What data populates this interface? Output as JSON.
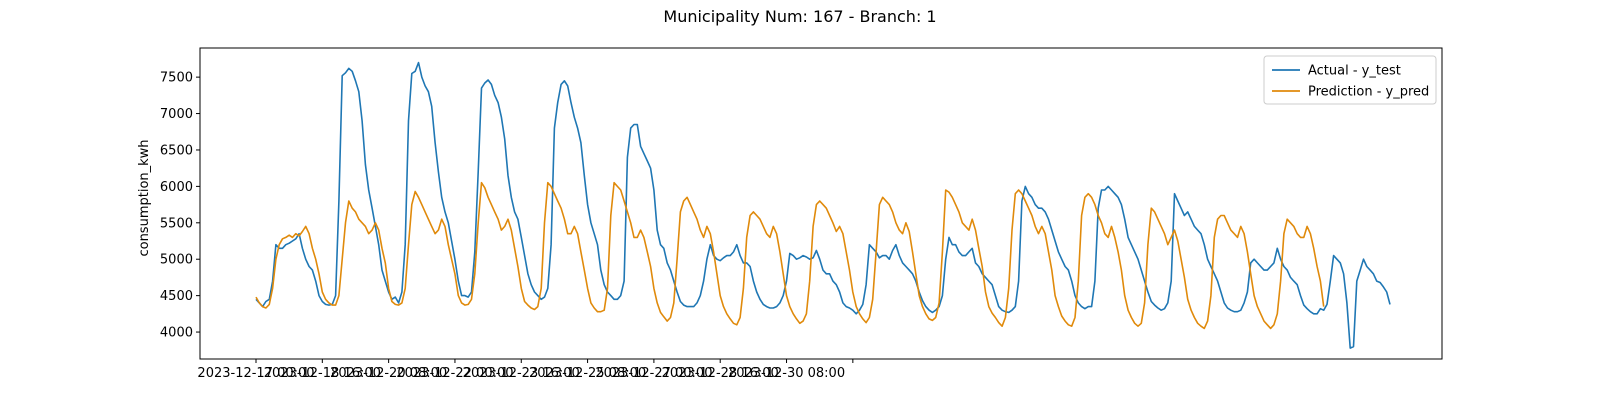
{
  "chart_data": {
    "type": "line",
    "title": "Municipality Num: 167 - Branch: 1",
    "xlabel": "",
    "ylabel": "consumption_kwh",
    "x_start": "2023-12-17 00:00",
    "x_step_hours": 2,
    "x_tick_labels": [
      "2023-12-17 00:00",
      "2023-12-18 16:00",
      "2023-12-20 08:00",
      "2023-12-22 00:00",
      "2023-12-23 16:00",
      "2023-12-25 08:00",
      "2023-12-27 00:00",
      "2023-12-28 16:00",
      "2023-12-30 08:00",
      ""
    ],
    "y_ticks": [
      4000,
      4500,
      5000,
      5500,
      6000,
      6500,
      7000,
      7500
    ],
    "ylim": [
      3630,
      7900
    ],
    "grid": false,
    "legend_position": "upper right",
    "series": [
      {
        "name": "Actual - y_test",
        "color": "#1f77b4",
        "values": [
          4450,
          4400,
          4350,
          4420,
          4450,
          4700,
          5200,
          5150,
          5150,
          5200,
          5220,
          5250,
          5280,
          5350,
          5150,
          5000,
          4900,
          4850,
          4700,
          4500,
          4420,
          4380,
          4370,
          4380,
          4500,
          5800,
          7520,
          7560,
          7620,
          7580,
          7450,
          7300,
          6900,
          6300,
          5950,
          5700,
          5450,
          5200,
          4850,
          4700,
          4550,
          4450,
          4480,
          4400,
          4550,
          5200,
          6900,
          7550,
          7580,
          7700,
          7500,
          7380,
          7300,
          7100,
          6600,
          6200,
          5850,
          5650,
          5500,
          5250,
          5000,
          4700,
          4500,
          4500,
          4480,
          4550,
          5100,
          6200,
          7350,
          7420,
          7460,
          7400,
          7250,
          7150,
          6950,
          6650,
          6150,
          5850,
          5650,
          5550,
          5300,
          5050,
          4800,
          4650,
          4550,
          4500,
          4450,
          4480,
          4600,
          5200,
          6800,
          7150,
          7400,
          7450,
          7380,
          7150,
          6950,
          6800,
          6600,
          6150,
          5750,
          5500,
          5350,
          5200,
          4850,
          4650,
          4550,
          4500,
          4450,
          4450,
          4500,
          4700,
          6400,
          6800,
          6850,
          6850,
          6550,
          6450,
          6350,
          6250,
          5950,
          5400,
          5200,
          5150,
          4950,
          4850,
          4700,
          4550,
          4420,
          4370,
          4350,
          4350,
          4350,
          4400,
          4500,
          4700,
          5000,
          5200,
          5050,
          5000,
          4980,
          5020,
          5050,
          5050,
          5100,
          5200,
          5050,
          4950,
          4950,
          4900,
          4700,
          4550,
          4450,
          4380,
          4350,
          4330,
          4330,
          4350,
          4400,
          4500,
          4700,
          5080,
          5050,
          5000,
          5020,
          5050,
          5030,
          5000,
          5020,
          5120,
          5000,
          4850,
          4800,
          4800,
          4700,
          4650,
          4550,
          4400,
          4350,
          4330,
          4300,
          4250,
          4300,
          4380,
          4650,
          5200,
          5150,
          5100,
          5020,
          5050,
          5050,
          5000,
          5120,
          5200,
          5050,
          4950,
          4900,
          4850,
          4800,
          4700,
          4550,
          4430,
          4350,
          4300,
          4270,
          4300,
          4350,
          4500,
          5000,
          5300,
          5200,
          5200,
          5100,
          5050,
          5050,
          5100,
          5150,
          4950,
          4900,
          4800,
          4750,
          4700,
          4650,
          4500,
          4350,
          4300,
          4280,
          4270,
          4300,
          4350,
          4700,
          5800,
          6000,
          5900,
          5850,
          5750,
          5700,
          5700,
          5650,
          5550,
          5400,
          5250,
          5100,
          5000,
          4900,
          4850,
          4700,
          4500,
          4400,
          4350,
          4320,
          4350,
          4350,
          4700,
          5700,
          5950,
          5950,
          6000,
          5950,
          5900,
          5850,
          5750,
          5550,
          5300,
          5200,
          5100,
          5000,
          4850,
          4700,
          4550,
          4420,
          4370,
          4330,
          4300,
          4320,
          4400,
          4700,
          5900,
          5800,
          5700,
          5600,
          5650,
          5550,
          5450,
          5400,
          5350,
          5200,
          5000,
          4900,
          4800,
          4700,
          4550,
          4400,
          4330,
          4300,
          4280,
          4280,
          4300,
          4400,
          4550,
          4950,
          5000,
          4950,
          4900,
          4850,
          4850,
          4900,
          4950,
          5150,
          5000,
          4900,
          4850,
          4750,
          4700,
          4650,
          4500,
          4370,
          4320,
          4280,
          4250,
          4250,
          4320,
          4300,
          4380,
          4700,
          5050,
          5000,
          4950,
          4800,
          4400,
          3780,
          3800,
          4700,
          4850,
          5000,
          4900,
          4850,
          4800,
          4700,
          4680,
          4620,
          4550,
          4380
        ]
      },
      {
        "name": "Prediction - y_pred",
        "color": "#e08a0b",
        "values": [
          4480,
          4400,
          4350,
          4330,
          4380,
          4600,
          5000,
          5200,
          5280,
          5300,
          5330,
          5300,
          5350,
          5320,
          5380,
          5450,
          5350,
          5150,
          5000,
          4800,
          4550,
          4450,
          4400,
          4370,
          4370,
          4500,
          5000,
          5500,
          5800,
          5700,
          5650,
          5550,
          5500,
          5450,
          5350,
          5400,
          5500,
          5400,
          5150,
          4950,
          4600,
          4420,
          4380,
          4370,
          4400,
          4600,
          5200,
          5750,
          5930,
          5850,
          5750,
          5650,
          5550,
          5450,
          5350,
          5400,
          5550,
          5450,
          5200,
          5000,
          4800,
          4500,
          4400,
          4370,
          4380,
          4450,
          4800,
          5500,
          6050,
          5980,
          5850,
          5750,
          5650,
          5550,
          5400,
          5450,
          5550,
          5400,
          5150,
          4900,
          4600,
          4420,
          4370,
          4330,
          4310,
          4350,
          4600,
          5500,
          6050,
          6000,
          5900,
          5800,
          5700,
          5550,
          5350,
          5350,
          5450,
          5350,
          5100,
          4850,
          4600,
          4400,
          4330,
          4280,
          4280,
          4300,
          4600,
          5600,
          6050,
          6000,
          5950,
          5800,
          5650,
          5500,
          5300,
          5300,
          5400,
          5300,
          5100,
          4900,
          4600,
          4400,
          4270,
          4210,
          4150,
          4200,
          4400,
          5000,
          5650,
          5800,
          5850,
          5750,
          5650,
          5550,
          5400,
          5300,
          5450,
          5350,
          5100,
          4800,
          4500,
          4350,
          4250,
          4180,
          4120,
          4100,
          4200,
          4600,
          5300,
          5600,
          5650,
          5600,
          5550,
          5450,
          5350,
          5300,
          5450,
          5350,
          5100,
          4800,
          4500,
          4350,
          4250,
          4180,
          4120,
          4150,
          4250,
          4700,
          5450,
          5750,
          5800,
          5750,
          5700,
          5600,
          5500,
          5380,
          5450,
          5350,
          5100,
          4850,
          4550,
          4350,
          4250,
          4180,
          4130,
          4200,
          4450,
          5100,
          5750,
          5850,
          5800,
          5750,
          5650,
          5500,
          5400,
          5350,
          5500,
          5380,
          5100,
          4800,
          4500,
          4350,
          4250,
          4180,
          4160,
          4200,
          4400,
          5100,
          5950,
          5920,
          5850,
          5750,
          5650,
          5500,
          5450,
          5400,
          5550,
          5400,
          5150,
          4900,
          4550,
          4350,
          4260,
          4200,
          4130,
          4080,
          4200,
          4600,
          5400,
          5900,
          5950,
          5900,
          5800,
          5700,
          5600,
          5450,
          5350,
          5450,
          5350,
          5100,
          4850,
          4500,
          4350,
          4220,
          4150,
          4100,
          4080,
          4200,
          4700,
          5600,
          5850,
          5900,
          5850,
          5750,
          5600,
          5500,
          5350,
          5300,
          5450,
          5300,
          5100,
          4850,
          4500,
          4300,
          4200,
          4120,
          4080,
          4120,
          4400,
          5200,
          5700,
          5650,
          5550,
          5450,
          5350,
          5200,
          5300,
          5400,
          5250,
          5000,
          4750,
          4450,
          4300,
          4200,
          4120,
          4080,
          4050,
          4150,
          4500,
          5300,
          5550,
          5600,
          5600,
          5500,
          5400,
          5350,
          5300,
          5450,
          5350,
          5100,
          4800,
          4500,
          4350,
          4250,
          4150,
          4100,
          4050,
          4100,
          4250,
          4700,
          5350,
          5550,
          5500,
          5450,
          5350,
          5300,
          5300,
          5450,
          5350,
          5150,
          4900,
          4700,
          4350
        ]
      }
    ]
  }
}
